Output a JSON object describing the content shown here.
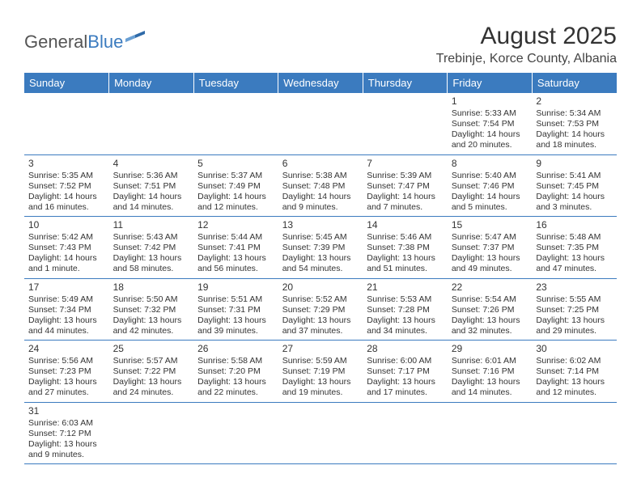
{
  "logo": {
    "general": "General",
    "blue": "Blue"
  },
  "title": "August 2025",
  "location": "Trebinje, Korce County, Albania",
  "colors": {
    "header_bg": "#3b7bbf",
    "header_text": "#ffffff",
    "border": "#3b7bbf",
    "text": "#333333",
    "page_bg": "#ffffff"
  },
  "dayHeaders": [
    "Sunday",
    "Monday",
    "Tuesday",
    "Wednesday",
    "Thursday",
    "Friday",
    "Saturday"
  ],
  "weeks": [
    [
      null,
      null,
      null,
      null,
      null,
      {
        "n": "1",
        "sr": "Sunrise: 5:33 AM",
        "ss": "Sunset: 7:54 PM",
        "d1": "Daylight: 14 hours",
        "d2": "and 20 minutes."
      },
      {
        "n": "2",
        "sr": "Sunrise: 5:34 AM",
        "ss": "Sunset: 7:53 PM",
        "d1": "Daylight: 14 hours",
        "d2": "and 18 minutes."
      }
    ],
    [
      {
        "n": "3",
        "sr": "Sunrise: 5:35 AM",
        "ss": "Sunset: 7:52 PM",
        "d1": "Daylight: 14 hours",
        "d2": "and 16 minutes."
      },
      {
        "n": "4",
        "sr": "Sunrise: 5:36 AM",
        "ss": "Sunset: 7:51 PM",
        "d1": "Daylight: 14 hours",
        "d2": "and 14 minutes."
      },
      {
        "n": "5",
        "sr": "Sunrise: 5:37 AM",
        "ss": "Sunset: 7:49 PM",
        "d1": "Daylight: 14 hours",
        "d2": "and 12 minutes."
      },
      {
        "n": "6",
        "sr": "Sunrise: 5:38 AM",
        "ss": "Sunset: 7:48 PM",
        "d1": "Daylight: 14 hours",
        "d2": "and 9 minutes."
      },
      {
        "n": "7",
        "sr": "Sunrise: 5:39 AM",
        "ss": "Sunset: 7:47 PM",
        "d1": "Daylight: 14 hours",
        "d2": "and 7 minutes."
      },
      {
        "n": "8",
        "sr": "Sunrise: 5:40 AM",
        "ss": "Sunset: 7:46 PM",
        "d1": "Daylight: 14 hours",
        "d2": "and 5 minutes."
      },
      {
        "n": "9",
        "sr": "Sunrise: 5:41 AM",
        "ss": "Sunset: 7:45 PM",
        "d1": "Daylight: 14 hours",
        "d2": "and 3 minutes."
      }
    ],
    [
      {
        "n": "10",
        "sr": "Sunrise: 5:42 AM",
        "ss": "Sunset: 7:43 PM",
        "d1": "Daylight: 14 hours",
        "d2": "and 1 minute."
      },
      {
        "n": "11",
        "sr": "Sunrise: 5:43 AM",
        "ss": "Sunset: 7:42 PM",
        "d1": "Daylight: 13 hours",
        "d2": "and 58 minutes."
      },
      {
        "n": "12",
        "sr": "Sunrise: 5:44 AM",
        "ss": "Sunset: 7:41 PM",
        "d1": "Daylight: 13 hours",
        "d2": "and 56 minutes."
      },
      {
        "n": "13",
        "sr": "Sunrise: 5:45 AM",
        "ss": "Sunset: 7:39 PM",
        "d1": "Daylight: 13 hours",
        "d2": "and 54 minutes."
      },
      {
        "n": "14",
        "sr": "Sunrise: 5:46 AM",
        "ss": "Sunset: 7:38 PM",
        "d1": "Daylight: 13 hours",
        "d2": "and 51 minutes."
      },
      {
        "n": "15",
        "sr": "Sunrise: 5:47 AM",
        "ss": "Sunset: 7:37 PM",
        "d1": "Daylight: 13 hours",
        "d2": "and 49 minutes."
      },
      {
        "n": "16",
        "sr": "Sunrise: 5:48 AM",
        "ss": "Sunset: 7:35 PM",
        "d1": "Daylight: 13 hours",
        "d2": "and 47 minutes."
      }
    ],
    [
      {
        "n": "17",
        "sr": "Sunrise: 5:49 AM",
        "ss": "Sunset: 7:34 PM",
        "d1": "Daylight: 13 hours",
        "d2": "and 44 minutes."
      },
      {
        "n": "18",
        "sr": "Sunrise: 5:50 AM",
        "ss": "Sunset: 7:32 PM",
        "d1": "Daylight: 13 hours",
        "d2": "and 42 minutes."
      },
      {
        "n": "19",
        "sr": "Sunrise: 5:51 AM",
        "ss": "Sunset: 7:31 PM",
        "d1": "Daylight: 13 hours",
        "d2": "and 39 minutes."
      },
      {
        "n": "20",
        "sr": "Sunrise: 5:52 AM",
        "ss": "Sunset: 7:29 PM",
        "d1": "Daylight: 13 hours",
        "d2": "and 37 minutes."
      },
      {
        "n": "21",
        "sr": "Sunrise: 5:53 AM",
        "ss": "Sunset: 7:28 PM",
        "d1": "Daylight: 13 hours",
        "d2": "and 34 minutes."
      },
      {
        "n": "22",
        "sr": "Sunrise: 5:54 AM",
        "ss": "Sunset: 7:26 PM",
        "d1": "Daylight: 13 hours",
        "d2": "and 32 minutes."
      },
      {
        "n": "23",
        "sr": "Sunrise: 5:55 AM",
        "ss": "Sunset: 7:25 PM",
        "d1": "Daylight: 13 hours",
        "d2": "and 29 minutes."
      }
    ],
    [
      {
        "n": "24",
        "sr": "Sunrise: 5:56 AM",
        "ss": "Sunset: 7:23 PM",
        "d1": "Daylight: 13 hours",
        "d2": "and 27 minutes."
      },
      {
        "n": "25",
        "sr": "Sunrise: 5:57 AM",
        "ss": "Sunset: 7:22 PM",
        "d1": "Daylight: 13 hours",
        "d2": "and 24 minutes."
      },
      {
        "n": "26",
        "sr": "Sunrise: 5:58 AM",
        "ss": "Sunset: 7:20 PM",
        "d1": "Daylight: 13 hours",
        "d2": "and 22 minutes."
      },
      {
        "n": "27",
        "sr": "Sunrise: 5:59 AM",
        "ss": "Sunset: 7:19 PM",
        "d1": "Daylight: 13 hours",
        "d2": "and 19 minutes."
      },
      {
        "n": "28",
        "sr": "Sunrise: 6:00 AM",
        "ss": "Sunset: 7:17 PM",
        "d1": "Daylight: 13 hours",
        "d2": "and 17 minutes."
      },
      {
        "n": "29",
        "sr": "Sunrise: 6:01 AM",
        "ss": "Sunset: 7:16 PM",
        "d1": "Daylight: 13 hours",
        "d2": "and 14 minutes."
      },
      {
        "n": "30",
        "sr": "Sunrise: 6:02 AM",
        "ss": "Sunset: 7:14 PM",
        "d1": "Daylight: 13 hours",
        "d2": "and 12 minutes."
      }
    ],
    [
      {
        "n": "31",
        "sr": "Sunrise: 6:03 AM",
        "ss": "Sunset: 7:12 PM",
        "d1": "Daylight: 13 hours",
        "d2": "and 9 minutes."
      },
      null,
      null,
      null,
      null,
      null,
      null
    ]
  ]
}
